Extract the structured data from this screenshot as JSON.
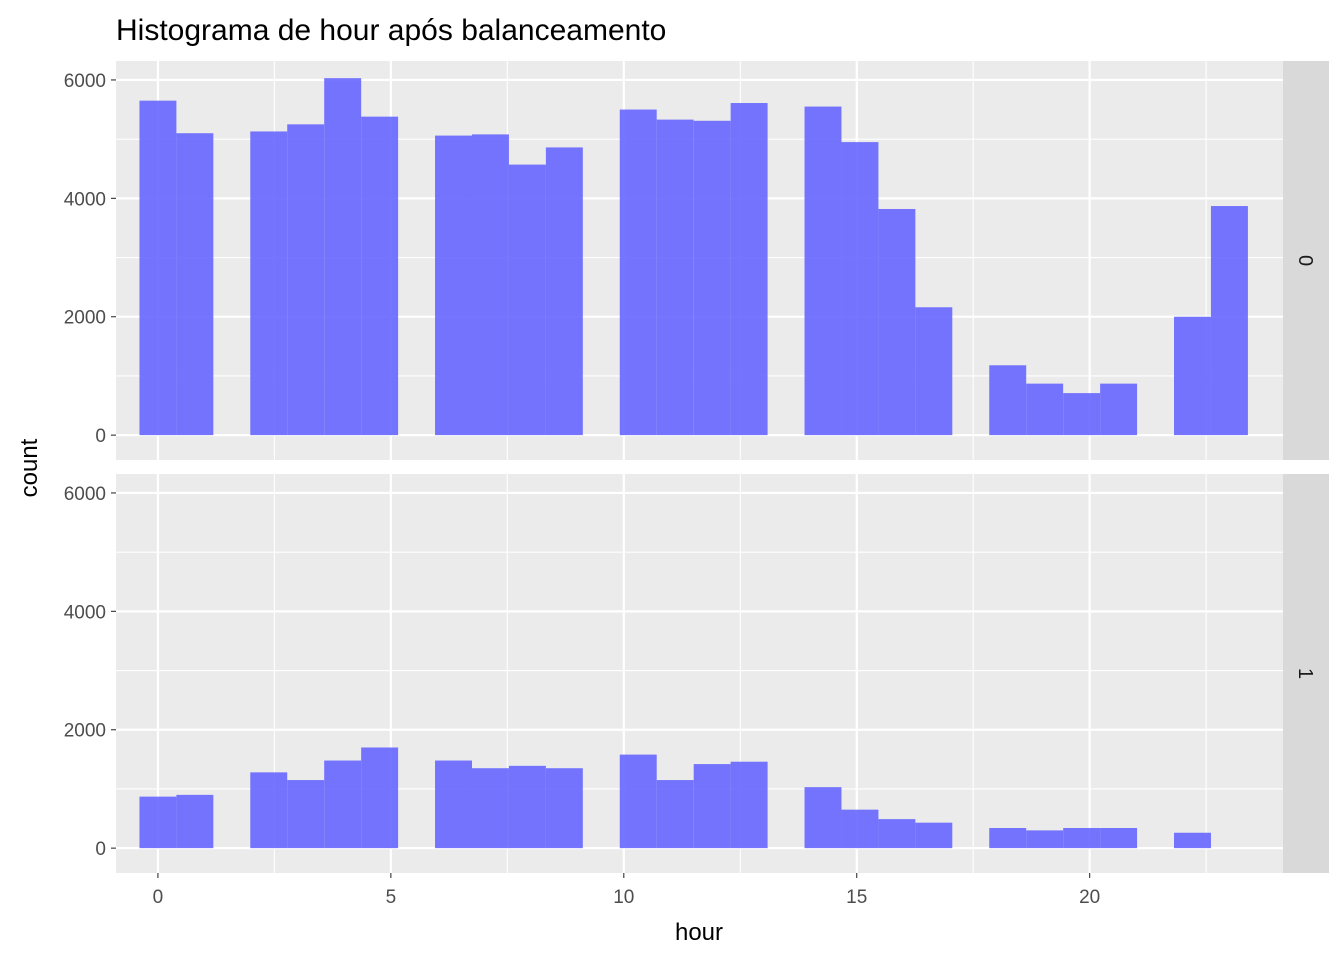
{
  "chart_data": {
    "type": "bar",
    "title": "Histograma de hour após balanceamento",
    "xlabel": "hour",
    "ylabel": "count",
    "xlim": [
      -0.9,
      24.15
    ],
    "ylim": [
      -420,
      6320
    ],
    "x_ticks": [
      0,
      5,
      10,
      15,
      20
    ],
    "y_ticks": [
      0,
      2000,
      4000,
      6000
    ],
    "bin_width": 0.7931,
    "bar_color": "#6666ff",
    "bar_opacity": 0.9,
    "panel_background": "#ebebeb",
    "strip_background": "#d9d9d9",
    "grid": true,
    "facets": [
      {
        "label": "0",
        "bins": [
          {
            "x": 0.0,
            "count": 5650
          },
          {
            "x": 0.793,
            "count": 5100
          },
          {
            "x": 2.379,
            "count": 5130
          },
          {
            "x": 3.172,
            "count": 5250
          },
          {
            "x": 3.966,
            "count": 6030
          },
          {
            "x": 4.759,
            "count": 5380
          },
          {
            "x": 6.345,
            "count": 5060
          },
          {
            "x": 7.138,
            "count": 5080
          },
          {
            "x": 7.931,
            "count": 4570
          },
          {
            "x": 8.724,
            "count": 4860
          },
          {
            "x": 10.31,
            "count": 5500
          },
          {
            "x": 11.103,
            "count": 5330
          },
          {
            "x": 11.897,
            "count": 5310
          },
          {
            "x": 12.69,
            "count": 5610
          },
          {
            "x": 14.276,
            "count": 5550
          },
          {
            "x": 15.069,
            "count": 4950
          },
          {
            "x": 15.862,
            "count": 3820
          },
          {
            "x": 16.655,
            "count": 2160
          },
          {
            "x": 18.241,
            "count": 1180
          },
          {
            "x": 19.034,
            "count": 870
          },
          {
            "x": 19.828,
            "count": 710
          },
          {
            "x": 20.621,
            "count": 870
          },
          {
            "x": 22.207,
            "count": 2000
          },
          {
            "x": 23.0,
            "count": 3870
          }
        ]
      },
      {
        "label": "1",
        "bins": [
          {
            "x": 0.0,
            "count": 870
          },
          {
            "x": 0.793,
            "count": 900
          },
          {
            "x": 2.379,
            "count": 1280
          },
          {
            "x": 3.172,
            "count": 1150
          },
          {
            "x": 3.966,
            "count": 1480
          },
          {
            "x": 4.759,
            "count": 1700
          },
          {
            "x": 6.345,
            "count": 1480
          },
          {
            "x": 7.138,
            "count": 1350
          },
          {
            "x": 7.931,
            "count": 1390
          },
          {
            "x": 8.724,
            "count": 1350
          },
          {
            "x": 10.31,
            "count": 1580
          },
          {
            "x": 11.103,
            "count": 1150
          },
          {
            "x": 11.897,
            "count": 1420
          },
          {
            "x": 12.69,
            "count": 1460
          },
          {
            "x": 14.276,
            "count": 1030
          },
          {
            "x": 15.069,
            "count": 650
          },
          {
            "x": 15.862,
            "count": 490
          },
          {
            "x": 16.655,
            "count": 430
          },
          {
            "x": 18.241,
            "count": 340
          },
          {
            "x": 19.034,
            "count": 300
          },
          {
            "x": 19.828,
            "count": 340
          },
          {
            "x": 20.621,
            "count": 340
          },
          {
            "x": 22.207,
            "count": 260
          }
        ]
      }
    ]
  }
}
